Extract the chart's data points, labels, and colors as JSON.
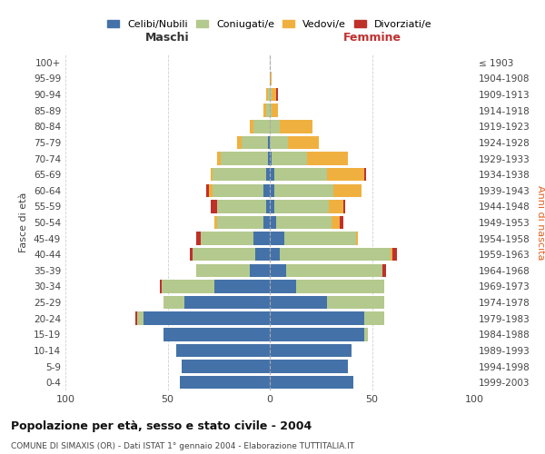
{
  "age_groups": [
    "0-4",
    "5-9",
    "10-14",
    "15-19",
    "20-24",
    "25-29",
    "30-34",
    "35-39",
    "40-44",
    "45-49",
    "50-54",
    "55-59",
    "60-64",
    "65-69",
    "70-74",
    "75-79",
    "80-84",
    "85-89",
    "90-94",
    "95-99",
    "100+"
  ],
  "birth_years": [
    "1999-2003",
    "1994-1998",
    "1989-1993",
    "1984-1988",
    "1979-1983",
    "1974-1978",
    "1969-1973",
    "1964-1968",
    "1959-1963",
    "1954-1958",
    "1949-1953",
    "1944-1948",
    "1939-1943",
    "1934-1938",
    "1929-1933",
    "1924-1928",
    "1919-1923",
    "1914-1918",
    "1909-1913",
    "1904-1908",
    "≤ 1903"
  ],
  "male": {
    "celibi": [
      44,
      43,
      46,
      52,
      62,
      42,
      27,
      10,
      7,
      8,
      3,
      2,
      3,
      2,
      1,
      1,
      0,
      0,
      0,
      0,
      0
    ],
    "coniugati": [
      0,
      0,
      0,
      0,
      3,
      10,
      26,
      26,
      31,
      26,
      23,
      24,
      25,
      26,
      23,
      13,
      8,
      2,
      1,
      0,
      0
    ],
    "vedovi": [
      0,
      0,
      0,
      0,
      0,
      0,
      0,
      0,
      0,
      0,
      1,
      0,
      2,
      1,
      2,
      2,
      2,
      1,
      1,
      0,
      0
    ],
    "divorziati": [
      0,
      0,
      0,
      0,
      1,
      0,
      1,
      0,
      1,
      2,
      0,
      3,
      1,
      0,
      0,
      0,
      0,
      0,
      0,
      0,
      0
    ]
  },
  "female": {
    "nubili": [
      41,
      38,
      40,
      46,
      46,
      28,
      13,
      8,
      5,
      7,
      3,
      2,
      2,
      2,
      1,
      0,
      0,
      0,
      0,
      0,
      0
    ],
    "coniugate": [
      0,
      0,
      0,
      2,
      10,
      28,
      43,
      47,
      54,
      35,
      27,
      27,
      29,
      26,
      17,
      9,
      5,
      1,
      1,
      0,
      0
    ],
    "vedove": [
      0,
      0,
      0,
      0,
      0,
      0,
      0,
      0,
      1,
      1,
      4,
      7,
      14,
      18,
      20,
      15,
      16,
      3,
      2,
      1,
      0
    ],
    "divorziate": [
      0,
      0,
      0,
      0,
      0,
      0,
      0,
      2,
      2,
      0,
      2,
      1,
      0,
      1,
      0,
      0,
      0,
      0,
      1,
      0,
      0
    ]
  },
  "colors": {
    "celibi": "#4472a8",
    "coniugati": "#b4c98d",
    "vedovi": "#f0b040",
    "divorziati": "#c0302a"
  },
  "title": "Popolazione per età, sesso e stato civile - 2004",
  "subtitle": "COMUNE DI SIMAXIS (OR) - Dati ISTAT 1° gennaio 2004 - Elaborazione TUTTITALIA.IT",
  "xlabel_left": "Maschi",
  "xlabel_right": "Femmine",
  "ylabel_left": "Fasce di età",
  "ylabel_right": "Anni di nascita",
  "xlim": 100,
  "background_color": "#ffffff",
  "grid_color": "#d0d0d0"
}
